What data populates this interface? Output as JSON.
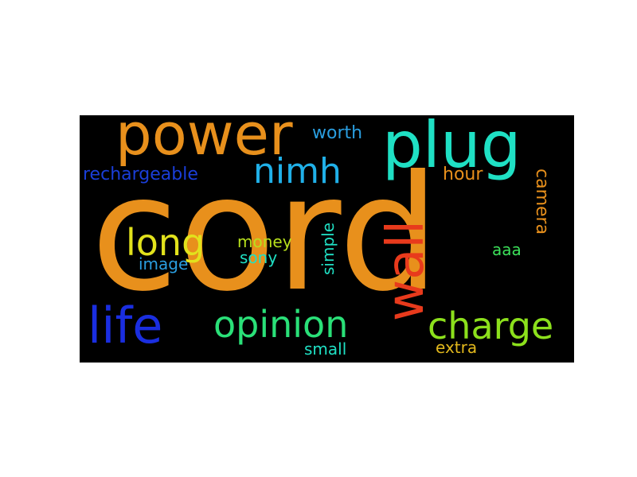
{
  "background_color": "#000000",
  "words": [
    {
      "id": "cord",
      "text": "cord",
      "color": "#e8901c"
    },
    {
      "id": "power",
      "text": "power",
      "color": "#e8901c"
    },
    {
      "id": "plug",
      "text": "plug",
      "color": "#1fe0c4"
    },
    {
      "id": "nimh",
      "text": "nimh",
      "color": "#20b0e8"
    },
    {
      "id": "worth",
      "text": "worth",
      "color": "#2a9ee0"
    },
    {
      "id": "rechargeable",
      "text": "rechargeable",
      "color": "#1a3ed8"
    },
    {
      "id": "hour",
      "text": "hour",
      "color": "#e8901c"
    },
    {
      "id": "camera",
      "text": "camera",
      "color": "#e8901c"
    },
    {
      "id": "long",
      "text": "long",
      "color": "#e2e21c"
    },
    {
      "id": "money",
      "text": "money",
      "color": "#b8e01c"
    },
    {
      "id": "sony",
      "text": "sony",
      "color": "#1fe0c4"
    },
    {
      "id": "image",
      "text": "image",
      "color": "#2a9ee0"
    },
    {
      "id": "simple",
      "text": "simple",
      "color": "#1fe0c4"
    },
    {
      "id": "wall",
      "text": "wall",
      "color": "#e83a1c"
    },
    {
      "id": "aaa",
      "text": "aaa",
      "color": "#3ce05a"
    },
    {
      "id": "life",
      "text": "life",
      "color": "#1a2ee0"
    },
    {
      "id": "opinion",
      "text": "opinion",
      "color": "#2ae078"
    },
    {
      "id": "charge",
      "text": "charge",
      "color": "#8ce01c"
    },
    {
      "id": "small",
      "text": "small",
      "color": "#1fe0c4"
    },
    {
      "id": "extra",
      "text": "extra",
      "color": "#e2b81c"
    }
  ]
}
